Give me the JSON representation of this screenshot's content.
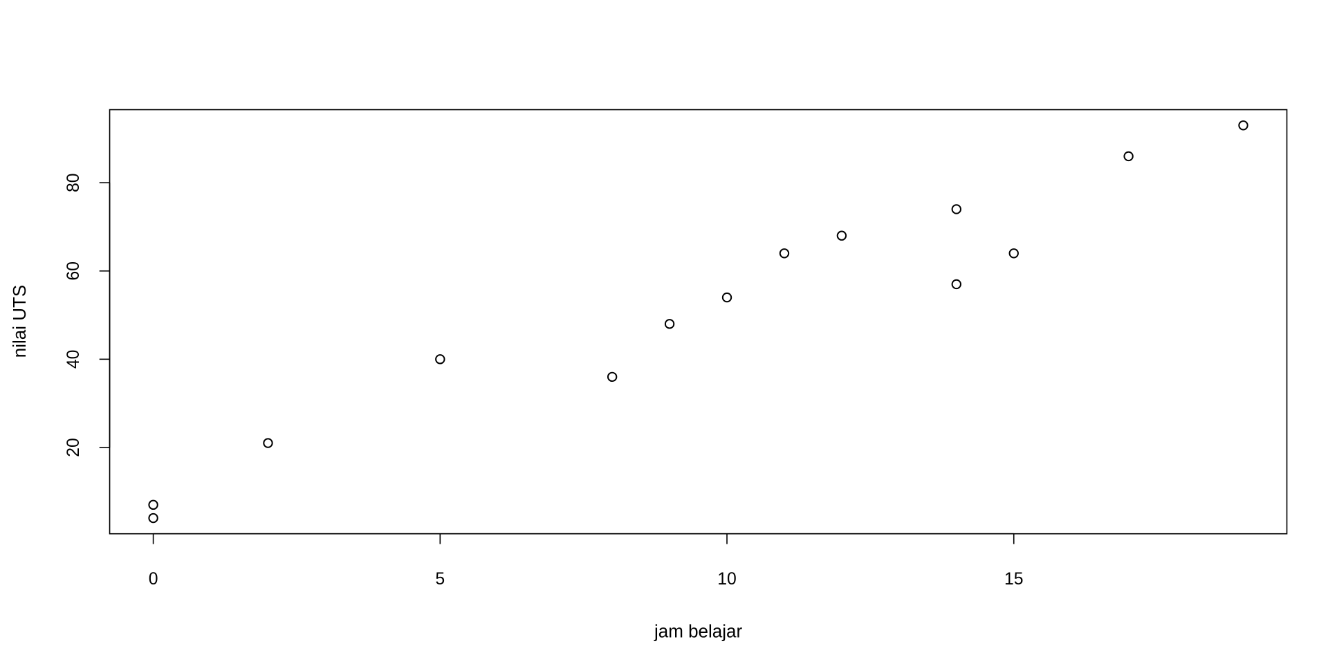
{
  "chart_data": {
    "type": "scatter",
    "title": "",
    "xlabel": "jam belajar",
    "ylabel": "nilai UTS",
    "xlim": [
      -0.76,
      19.76
    ],
    "ylim": [
      0.44,
      96.56
    ],
    "xticks": [
      0,
      5,
      10,
      15
    ],
    "yticks": [
      20,
      40,
      60,
      80
    ],
    "xtick_labels": [
      "0",
      "5",
      "10",
      "15"
    ],
    "ytick_labels": [
      "20",
      "40",
      "60",
      "80"
    ],
    "grid": false,
    "marker": "open-circle",
    "color": "#000000",
    "points": [
      {
        "x": 0,
        "y": 4
      },
      {
        "x": 0,
        "y": 7
      },
      {
        "x": 2,
        "y": 21
      },
      {
        "x": 5,
        "y": 40
      },
      {
        "x": 8,
        "y": 36
      },
      {
        "x": 9,
        "y": 48
      },
      {
        "x": 10,
        "y": 54
      },
      {
        "x": 11,
        "y": 64
      },
      {
        "x": 12,
        "y": 68
      },
      {
        "x": 14,
        "y": 74
      },
      {
        "x": 14,
        "y": 57
      },
      {
        "x": 15,
        "y": 64
      },
      {
        "x": 17,
        "y": 86
      },
      {
        "x": 19,
        "y": 93
      }
    ]
  }
}
